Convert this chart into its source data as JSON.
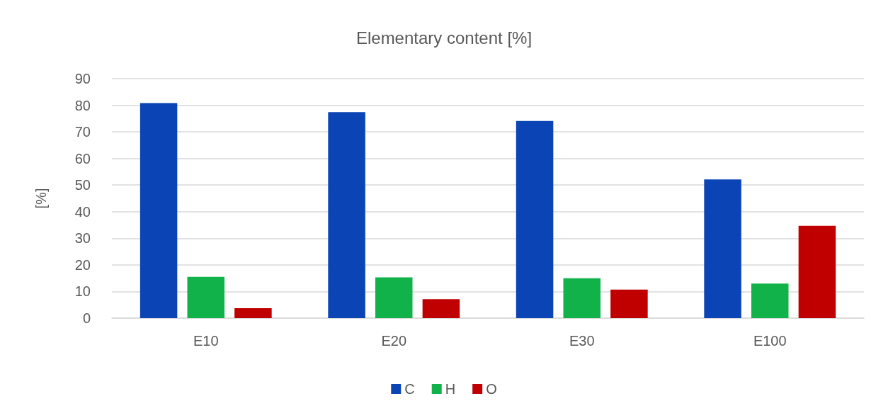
{
  "chart_data": {
    "type": "bar",
    "title": "Elementary content [%]",
    "ylabel": "[%]",
    "categories": [
      "E10",
      "E20",
      "E30",
      "E100"
    ],
    "series": [
      {
        "name": "C",
        "color": "#0b44b5",
        "values": [
          80.8,
          77.4,
          74.1,
          52.1
        ]
      },
      {
        "name": "H",
        "color": "#12b24b",
        "values": [
          15.5,
          15.3,
          15.0,
          13.0
        ]
      },
      {
        "name": "O",
        "color": "#c00000",
        "values": [
          3.7,
          7.1,
          10.7,
          34.7
        ]
      }
    ],
    "ylim": [
      0,
      90
    ],
    "yticks": [
      0,
      10,
      20,
      30,
      40,
      50,
      60,
      70,
      80,
      90
    ],
    "grid": "y",
    "legend": "bottom"
  }
}
